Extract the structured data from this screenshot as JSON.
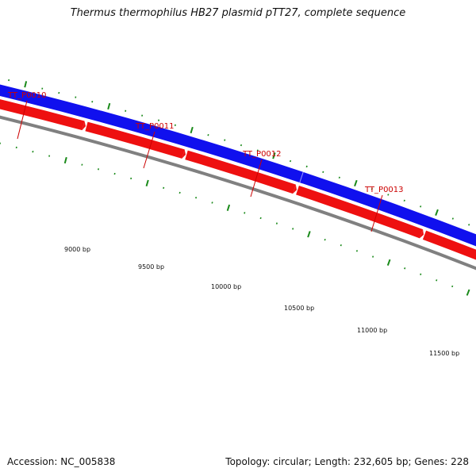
{
  "title": "Thermus thermophilus HB27 plasmid pTT27, complete sequence",
  "footer": {
    "accession": "Accession: NC_005838",
    "summary": "Topology: circular; Length: 232,605 bp; Genes: 228"
  },
  "colors": {
    "forward_strand": "#1010ee",
    "reverse_strand": "#ee1010",
    "backbone": "#808080",
    "ticks": "#1a8a1a",
    "gene_label": "#cc0000"
  },
  "map": {
    "genes": [
      {
        "label": "TT_P0010"
      },
      {
        "label": "TT_P0011"
      },
      {
        "label": "TT_P0012"
      },
      {
        "label": "TT_P0013"
      }
    ],
    "tick_labels": [
      "9000 bp",
      "9500 bp",
      "10000 bp",
      "10500 bp",
      "11000 bp",
      "11500 bp"
    ]
  }
}
